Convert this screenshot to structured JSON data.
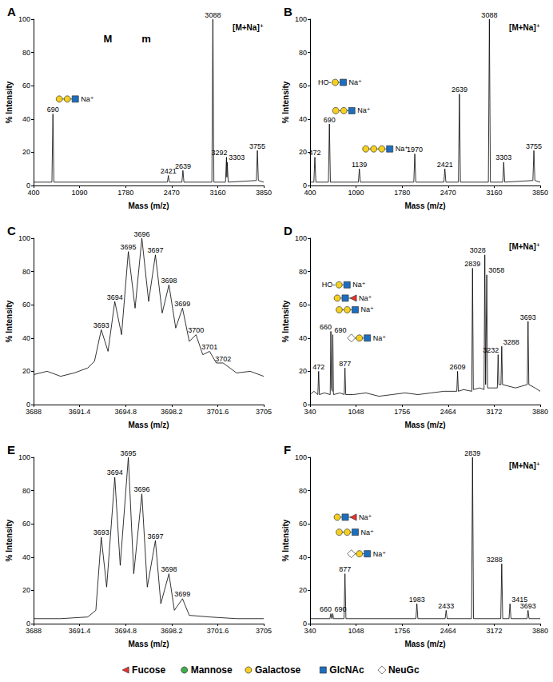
{
  "chart_data": [
    {
      "type": "line",
      "title": "A",
      "xlabel": "Mass (m/z)",
      "ylabel": "% Intensity",
      "color": "#000000",
      "grid": false,
      "xlim": [
        400,
        3850
      ],
      "xticks": [
        400,
        1090,
        1780,
        2470,
        3160,
        3850
      ],
      "ylim": [
        0,
        100
      ],
      "yticks": [
        0,
        20,
        40,
        60,
        80,
        100
      ],
      "x": [
        400,
        675,
        690,
        705,
        2406,
        2421,
        2436,
        2624,
        2639,
        2654,
        3073,
        3088,
        3103,
        3277,
        3292,
        3298,
        3303,
        3318,
        3740,
        3755,
        3770,
        3850
      ],
      "values": [
        2,
        2,
        43,
        2,
        2,
        6,
        2,
        2,
        9,
        2,
        2,
        100,
        2,
        2,
        17,
        5,
        14,
        2,
        3,
        21,
        3,
        2
      ],
      "labeled_peaks": [
        690,
        2421,
        2639,
        3088,
        3292,
        3303,
        3755
      ],
      "ions": [
        {
          "peak": 690,
          "y": 52,
          "residues": [
            "Galactose",
            "Galactose",
            "GlcNAc"
          ],
          "charge": "Na⁺"
        }
      ],
      "texts": [
        {
          "text": "M",
          "x": 1514,
          "y": 88
        },
        {
          "text": "m",
          "x": 2090,
          "y": 88
        },
        {
          "text": "[M+Na]⁺",
          "x": 3850,
          "y": 95
        }
      ]
    },
    {
      "type": "line",
      "title": "B",
      "xlabel": "Mass (m/z)",
      "ylabel": "% Intensity",
      "color": "#000000",
      "grid": false,
      "xlim": [
        400,
        3850
      ],
      "xticks": [
        400,
        1090,
        1780,
        2470,
        3160,
        3850
      ],
      "ylim": [
        0,
        100
      ],
      "yticks": [
        0,
        20,
        40,
        60,
        80,
        100
      ],
      "x": [
        400,
        457,
        472,
        487,
        675,
        690,
        705,
        1124,
        1139,
        1154,
        1955,
        1970,
        1985,
        2406,
        2421,
        2436,
        2624,
        2639,
        2654,
        3073,
        3088,
        3103,
        3288,
        3303,
        3318,
        3740,
        3755,
        3770,
        3850
      ],
      "values": [
        2,
        2,
        17,
        2,
        2,
        37,
        2,
        2,
        10,
        2,
        2,
        19,
        2,
        2,
        10,
        2,
        2,
        55,
        2,
        2,
        100,
        2,
        2,
        14,
        2,
        3,
        21,
        3,
        2
      ],
      "labeled_peaks": [
        472,
        690,
        1139,
        1970,
        2421,
        2639,
        3088,
        3303,
        3755
      ],
      "ions": [
        {
          "peak": 472,
          "y": 62,
          "prefix": "HO-",
          "residues": [
            "Galactose",
            "GlcNAc"
          ],
          "charge": "Na⁺"
        },
        {
          "peak": 690,
          "y": 45,
          "residues": [
            "Galactose",
            "Galactose",
            "GlcNAc"
          ],
          "charge": "Na⁺"
        },
        {
          "peak": 1139,
          "y": 22,
          "residues": [
            "Galactose",
            "Galactose",
            "Galactose",
            "GlcNAc"
          ],
          "charge": "Na⁺"
        }
      ],
      "texts": [
        {
          "text": "[M+Na]⁺",
          "x": 3850,
          "y": 95
        }
      ]
    },
    {
      "type": "line",
      "title": "C",
      "xlabel": "Mass (m/z)",
      "ylabel": "% Intensity",
      "color": "#000000",
      "grid": false,
      "xlim": [
        3688,
        3705
      ],
      "xticks": [
        3688,
        3691.4,
        3694.8,
        3698.2,
        3701.6,
        3705
      ],
      "ylim": [
        0,
        100
      ],
      "yticks": [
        0,
        20,
        40,
        60,
        80,
        100
      ],
      "x": [
        3688,
        3689,
        3690,
        3691,
        3692,
        3692.5,
        3693,
        3693.5,
        3694,
        3694.5,
        3695,
        3695.5,
        3696,
        3696.5,
        3697,
        3697.5,
        3698,
        3698.5,
        3699,
        3699.5,
        3700,
        3700.5,
        3701,
        3701.5,
        3702,
        3702.5,
        3703,
        3704,
        3705
      ],
      "values": [
        18,
        20,
        17,
        19,
        22,
        26,
        45,
        32,
        62,
        42,
        92,
        58,
        100,
        62,
        90,
        55,
        72,
        46,
        58,
        38,
        42,
        30,
        32,
        25,
        25,
        22,
        19,
        20,
        17
      ],
      "labeled_peaks": [
        3693,
        3694,
        3695,
        3696,
        3697,
        3698,
        3699,
        3700,
        3701,
        3702
      ],
      "ions": [],
      "texts": []
    },
    {
      "type": "line",
      "title": "D",
      "xlabel": "Mass (m/z)",
      "ylabel": "% Intensity",
      "color": "#000000",
      "grid": false,
      "xlim": [
        340,
        3880
      ],
      "xticks": [
        340,
        1048,
        1756,
        2464,
        3172,
        3880
      ],
      "ylim": [
        0,
        100
      ],
      "yticks": [
        0,
        20,
        40,
        60,
        80,
        100
      ],
      "x": [
        340,
        400,
        460,
        472,
        484,
        560,
        650,
        660,
        670,
        680,
        690,
        700,
        800,
        865,
        877,
        889,
        1000,
        1200,
        1400,
        1600,
        1800,
        2000,
        2200,
        2400,
        2597,
        2609,
        2621,
        2700,
        2827,
        2839,
        2851,
        2950,
        3016,
        3028,
        3040,
        3046,
        3058,
        3070,
        3150,
        3220,
        3232,
        3244,
        3276,
        3288,
        3300,
        3500,
        3681,
        3693,
        3705,
        3800,
        3880
      ],
      "values": [
        6,
        8,
        6,
        20,
        6,
        7,
        6,
        44,
        10,
        8,
        42,
        6,
        7,
        6,
        22,
        6,
        6,
        7,
        5,
        6,
        7,
        6,
        7,
        8,
        8,
        20,
        8,
        9,
        8,
        82,
        9,
        10,
        9,
        90,
        12,
        12,
        78,
        10,
        10,
        10,
        30,
        12,
        12,
        35,
        12,
        10,
        12,
        50,
        12,
        10,
        8
      ],
      "labeled_peaks": [
        472,
        660,
        690,
        877,
        2609,
        2839,
        3028,
        3058,
        3232,
        3288,
        3693
      ],
      "ions": [
        {
          "peak": 472,
          "y": 72,
          "prefix": "HO-",
          "residues": [
            "Galactose",
            "GlcNAc"
          ],
          "charge": "Na⁺"
        },
        {
          "peak": 660,
          "y": 64,
          "residues": [
            "Galactose",
            "GlcNAc",
            "Fucose"
          ],
          "charge": "Na⁺"
        },
        {
          "peak": 690,
          "y": 57,
          "residues": [
            "Galactose",
            "Galactose",
            "GlcNAc"
          ],
          "charge": "Na⁺"
        },
        {
          "peak": 877,
          "y": 40,
          "residues": [
            "NeuGc",
            "Galactose",
            "GlcNAc"
          ],
          "charge": "Na⁺"
        }
      ],
      "texts": [
        {
          "text": "[M+Na]⁺",
          "x": 3880,
          "y": 95
        }
      ]
    },
    {
      "type": "line",
      "title": "E",
      "xlabel": "Mass (m/z)",
      "ylabel": "% Intensity",
      "color": "#000000",
      "grid": false,
      "xlim": [
        3688,
        3705
      ],
      "xticks": [
        3688,
        3691.4,
        3694.8,
        3698.2,
        3701.6,
        3705
      ],
      "ylim": [
        0,
        100
      ],
      "yticks": [
        0,
        20,
        40,
        60,
        80,
        100
      ],
      "x": [
        3688,
        3690,
        3692,
        3692.6,
        3693,
        3693.4,
        3694,
        3694.4,
        3695,
        3695.4,
        3696,
        3696.4,
        3697,
        3697.4,
        3698,
        3698.4,
        3699,
        3699.5,
        3701,
        3703,
        3705
      ],
      "values": [
        3,
        3,
        4,
        8,
        52,
        22,
        88,
        35,
        100,
        30,
        78,
        22,
        50,
        12,
        30,
        8,
        15,
        5,
        4,
        3,
        3
      ],
      "labeled_peaks": [
        3693,
        3694,
        3695,
        3696,
        3697,
        3698,
        3699
      ],
      "ions": [],
      "texts": []
    },
    {
      "type": "line",
      "title": "F",
      "xlabel": "Mass (m/z)",
      "ylabel": "% Intensity",
      "color": "#000000",
      "grid": false,
      "xlim": [
        340,
        3880
      ],
      "xticks": [
        340,
        1048,
        1756,
        2464,
        3172,
        3880
      ],
      "ylim": [
        0,
        100
      ],
      "yticks": [
        0,
        20,
        40,
        60,
        80,
        100
      ],
      "x": [
        340,
        645,
        660,
        675,
        680,
        690,
        700,
        862,
        877,
        892,
        1968,
        1983,
        1998,
        2418,
        2433,
        2448,
        2824,
        2839,
        2854,
        3273,
        3288,
        3303,
        3400,
        3415,
        3430,
        3678,
        3693,
        3708,
        3880
      ],
      "values": [
        3,
        3,
        6,
        3,
        3,
        6,
        3,
        3,
        30,
        3,
        3,
        12,
        3,
        3,
        8,
        3,
        3,
        100,
        3,
        3,
        36,
        3,
        3,
        12,
        3,
        3,
        8,
        3,
        3
      ],
      "labeled_peaks": [
        660,
        690,
        877,
        1983,
        2433,
        2839,
        3288,
        3415,
        3693
      ],
      "ions": [
        {
          "peak": 660,
          "y": 64,
          "residues": [
            "Galactose",
            "GlcNAc",
            "Fucose"
          ],
          "charge": "Na⁺"
        },
        {
          "peak": 690,
          "y": 55,
          "residues": [
            "Galactose",
            "Galactose",
            "GlcNAc"
          ],
          "charge": "Na⁺"
        },
        {
          "peak": 877,
          "y": 42,
          "residues": [
            "NeuGc",
            "Galactose",
            "GlcNAc"
          ],
          "charge": "Na⁺"
        }
      ],
      "texts": [
        {
          "text": "[M+Na]⁺",
          "x": 3880,
          "y": 95
        }
      ]
    }
  ],
  "symbol_legend": [
    {
      "name": "Fucose",
      "marker": "triangle",
      "color": "#e8312f"
    },
    {
      "name": "Mannose",
      "marker": "circle",
      "color": "#3fae49"
    },
    {
      "name": "Galactose",
      "marker": "circle",
      "color": "#f5d020"
    },
    {
      "name": "GlcNAc",
      "marker": "square",
      "color": "#1c6fc0"
    },
    {
      "name": "NeuGc",
      "marker": "diamond",
      "color": "#ffffff"
    }
  ]
}
